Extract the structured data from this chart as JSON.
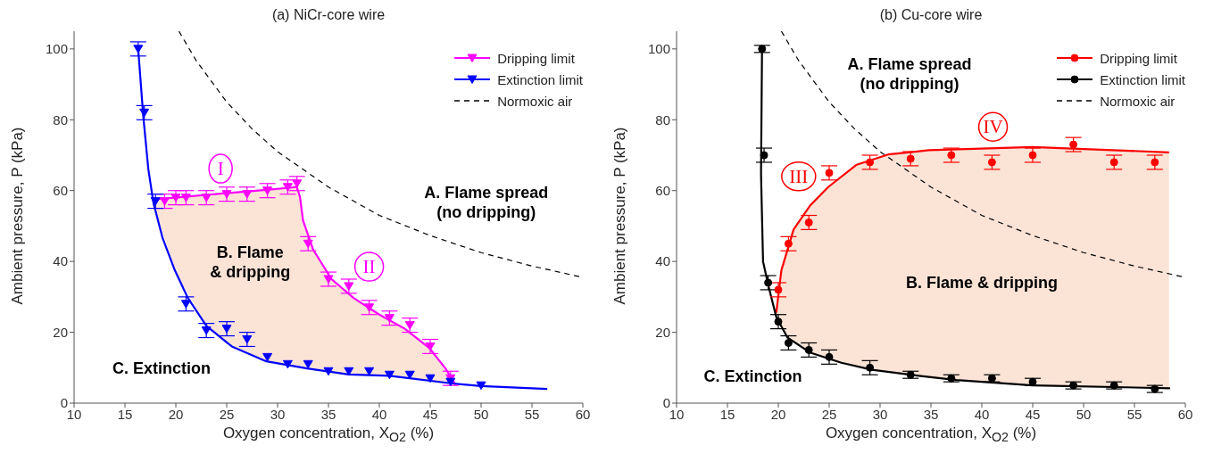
{
  "chart_data": [
    {
      "type": "scatter",
      "title": "(a) NiCr-core wire",
      "xlabel": "Oxygen concentration, X$_{O2}$ (%)",
      "ylabel": "Ambient pressure, P (kPa)",
      "xlim": [
        10,
        60
      ],
      "xticks": [
        10,
        15,
        20,
        25,
        30,
        35,
        40,
        45,
        50,
        55,
        60
      ],
      "ylim": [
        0,
        105
      ],
      "yticks": [
        0,
        20,
        40,
        60,
        80,
        100
      ],
      "legend": "top right",
      "series": [
        {
          "type": "scatter",
          "name": "Dripping limit",
          "color": "#ff00ff",
          "marker": "triangle",
          "x": [
            18.9,
            20,
            21,
            23,
            25,
            27,
            29,
            31,
            31.9,
            33,
            35,
            37,
            39,
            41,
            43,
            45,
            47
          ],
          "values": [
            57,
            58,
            58,
            58,
            59,
            59,
            60,
            61,
            62,
            45,
            35,
            33,
            27,
            24,
            22,
            16,
            7
          ],
          "errors": [
            2,
            2,
            2,
            2,
            2,
            2,
            2,
            2,
            2,
            2,
            2,
            2,
            2,
            2,
            2,
            2,
            2
          ]
        },
        {
          "type": "scatter",
          "name": "Extinction limit",
          "color": "#0000ff",
          "marker": "triangle",
          "x": [
            16.3,
            16.9,
            18,
            21,
            23,
            25,
            27,
            29,
            31,
            33,
            35,
            37,
            39,
            41,
            43,
            45,
            47,
            50
          ],
          "values": [
            100,
            82,
            57,
            28,
            20.5,
            21,
            18,
            13,
            11,
            11,
            9,
            9,
            9,
            8,
            8,
            7,
            6,
            5
          ],
          "errors": [
            2,
            2,
            2,
            2,
            2,
            2,
            2,
            null,
            null,
            null,
            null,
            null,
            null,
            null,
            null,
            null,
            null,
            null
          ]
        },
        {
          "type": "line",
          "name": "Normoxic air",
          "color": "#000000",
          "line_style": "dashed",
          "x": [
            20.3,
            22,
            25,
            27.5,
            30,
            35,
            40,
            45,
            50,
            55,
            60
          ],
          "values": [
            105,
            96.7,
            85,
            77.4,
            71,
            61,
            53,
            47.3,
            42.5,
            38.7,
            35.5
          ]
        },
        {
          "type": "line",
          "color": "#ff00ff",
          "x": [
            17.8,
            19.9,
            23,
            25.5,
            28.9,
            31.9,
            32.2,
            32.5,
            33.5,
            35.3,
            37.5,
            40,
            42.5,
            44.9,
            46.5,
            47.5
          ],
          "values": [
            57.5,
            58,
            58.8,
            59.4,
            60.2,
            61,
            58.2,
            51.6,
            43.3,
            35,
            29.6,
            25,
            21,
            15.6,
            9.8,
            5.2
          ],
          "lower": [
            56.5,
            37.5,
            21.8,
            16,
            11.8,
            10.2,
            10.1,
            10,
            9.6,
            8.9,
            8,
            7.8,
            7,
            6.3,
            5.8,
            5.2
          ],
          "upper": [
            57.5,
            58,
            58.8,
            59.4,
            60.2,
            61,
            58.2,
            51.6,
            43.3,
            35,
            29.6,
            25,
            21,
            15.6,
            9.8,
            5.2
          ]
        },
        {
          "type": "line",
          "color": "#0000ff",
          "x": [
            16.3,
            16.8,
            17.3,
            17.8,
            18.7,
            19.9,
            21.2,
            23,
            25.5,
            28.9,
            32.9,
            37,
            41,
            47,
            50,
            56.5
          ],
          "values": [
            100,
            81,
            66,
            56.5,
            46.6,
            37.5,
            29.6,
            21.8,
            16,
            11.8,
            9.8,
            8.1,
            7.7,
            5.6,
            4.8,
            4
          ]
        }
      ],
      "annotations": [
        {
          "text": "I",
          "x": 24.4,
          "y": 66.2
        },
        {
          "text": "II",
          "x": 39,
          "y": 38.5
        },
        "A. Flame spread\n(no dripping)",
        "B. Flame\n& dripping",
        "C. Extinction"
      ]
    },
    {
      "type": "scatter",
      "title": "(b) Cu-core wire",
      "xlabel": "Oxygen concentration, X$_{O2}$ (%)",
      "ylabel": "Ambient pressure, P (kPa)",
      "xlim": [
        10,
        60
      ],
      "xticks": [
        10,
        15,
        20,
        25,
        30,
        35,
        40,
        45,
        50,
        55,
        60
      ],
      "ylim": [
        0,
        105
      ],
      "yticks": [
        0,
        20,
        40,
        60,
        80,
        100
      ],
      "legend": "top right",
      "series": [
        {
          "type": "scatter",
          "name": "Dripping limit",
          "color": "#ff0000",
          "marker": "circle",
          "x": [
            20,
            21,
            23,
            25,
            29,
            33,
            37,
            41,
            45,
            49,
            53,
            57
          ],
          "values": [
            32,
            45,
            51,
            65,
            68,
            69,
            70,
            68,
            70,
            73,
            68,
            68
          ],
          "errors": [
            2,
            2,
            2,
            2,
            2,
            2,
            2,
            2,
            2,
            2,
            2,
            2
          ]
        },
        {
          "type": "scatter",
          "name": "Extinction limit",
          "color": "#000000",
          "marker": "circle",
          "x": [
            18.4,
            18.6,
            19,
            20,
            21,
            23,
            25,
            29,
            33,
            37,
            41,
            45,
            49,
            53,
            57
          ],
          "values": [
            100,
            70,
            34,
            23,
            17,
            15,
            13,
            10,
            8,
            7,
            7,
            6,
            5,
            5,
            4
          ],
          "errors": [
            1,
            2,
            2,
            2,
            2,
            2,
            2,
            2,
            1,
            1,
            1,
            1,
            1,
            1,
            1
          ]
        },
        {
          "type": "line",
          "name": "Normoxic air",
          "color": "#000000",
          "line_style": "dashed",
          "x": [
            20.3,
            22,
            25,
            27.5,
            30,
            35,
            40,
            45,
            50,
            55,
            60
          ],
          "values": [
            105,
            96.7,
            85,
            77.4,
            71,
            61,
            53,
            47.3,
            42.5,
            38.7,
            35.5
          ]
        },
        {
          "type": "line",
          "color": "#ff0000",
          "x": [
            19.8,
            20.3,
            21.5,
            23.1,
            24.9,
            27.7,
            30.8,
            34.8,
            45,
            58.4
          ],
          "values": [
            25.5,
            37.5,
            49,
            55.7,
            61,
            67.3,
            70.2,
            71.4,
            72.3,
            70.8
          ],
          "lower": [
            24.3,
            21,
            17.8,
            14.3,
            12.3,
            10.3,
            8.7,
            7.4,
            5,
            4.2
          ],
          "upper": [
            25.5,
            37.5,
            49,
            55.7,
            61,
            67.3,
            70.2,
            71.4,
            72.3,
            70.8
          ]
        },
        {
          "type": "line",
          "color": "#000000",
          "x": [
            18.4,
            18.3,
            18.5,
            19,
            19.8,
            20.9,
            23.1,
            26.2,
            29.2,
            33.8,
            37.5,
            45,
            58.5
          ],
          "values": [
            100,
            64.8,
            40,
            33.4,
            24.3,
            18.5,
            14.3,
            11.4,
            9.4,
            7.7,
            6.5,
            5,
            4.2
          ]
        }
      ],
      "annotations": [
        {
          "text": "III",
          "x": 22,
          "y": 64
        },
        {
          "text": "IV",
          "x": 41.1,
          "y": 78
        },
        "A. Flame spread\n(no dripping)",
        "B. Flame & dripping",
        "C. Extinction"
      ]
    }
  ]
}
